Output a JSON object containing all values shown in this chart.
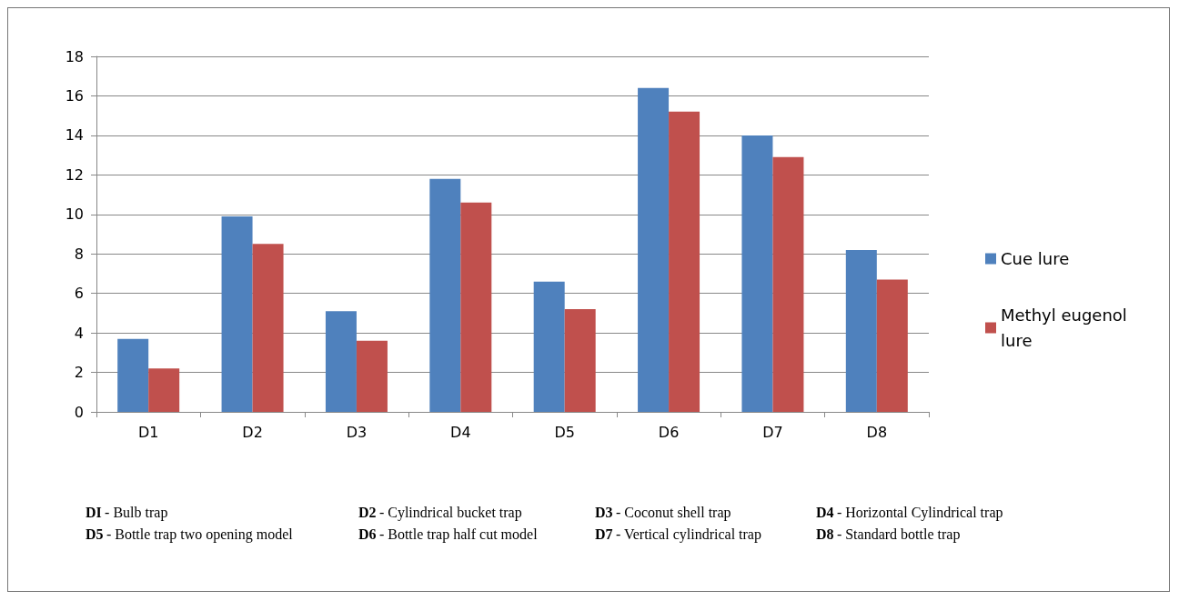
{
  "chart_data": {
    "type": "bar",
    "categories": [
      "D1",
      "D2",
      "D3",
      "D4",
      "D5",
      "D6",
      "D7",
      "D8"
    ],
    "series": [
      {
        "name": "Cue lure",
        "color": "#4f81bd",
        "values": [
          3.7,
          9.9,
          5.1,
          11.8,
          6.6,
          16.4,
          14.0,
          8.2
        ]
      },
      {
        "name": "Methyl eugenol lure",
        "color": "#c0504d",
        "values": [
          2.2,
          8.5,
          3.6,
          10.6,
          5.2,
          15.2,
          12.9,
          6.7
        ]
      }
    ],
    "ylim": [
      0,
      18
    ],
    "yticks": [
      0,
      2,
      4,
      6,
      8,
      10,
      12,
      14,
      16,
      18
    ],
    "grid": "y",
    "legend": "right",
    "annotations": [
      "DI - Bulb trap",
      "D2 - Cylindrical bucket trap",
      "D3 - Coconut shell trap",
      "D4 - Horizontal Cylindrical trap",
      "D5 - Bottle trap two opening model",
      "D6- Bottle trap half cut model",
      "D7 - Vertical cylindrical trap",
      "D8 - Standard bottle trap"
    ]
  }
}
